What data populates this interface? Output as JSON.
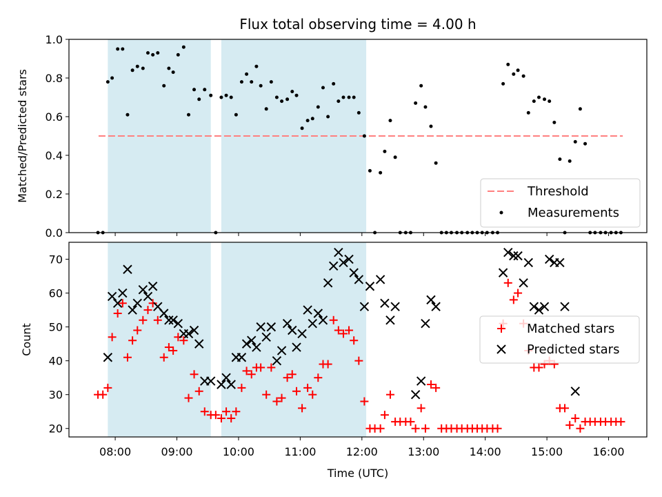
{
  "chart_data": [
    {
      "type": "scatter",
      "title": "Flux total observing time = 4.00 h",
      "xlabel": "",
      "ylabel": "Matched/Predicted stars",
      "xlim_hours": [
        7.25,
        16.62
      ],
      "ylim": [
        0,
        1.0
      ],
      "yticks": [
        0.0,
        0.2,
        0.4,
        0.6,
        0.8,
        1.0
      ],
      "ytick_labels": [
        "0.0",
        "0.2",
        "0.4",
        "0.6",
        "0.8",
        "1.0"
      ],
      "shaded_intervals_hours": [
        [
          7.88,
          9.55
        ],
        [
          9.72,
          12.07
        ]
      ],
      "threshold": {
        "name": "Threshold",
        "value": 0.5,
        "x_range_hours": [
          7.73,
          16.23
        ],
        "color": "#ff7f7f",
        "style": "dashed"
      },
      "legend": {
        "position": "lower right",
        "entries": [
          "Threshold",
          "Measurements"
        ]
      },
      "series": [
        {
          "name": "Measurements",
          "color": "#000000",
          "marker": "dot",
          "x_hours": [
            7.72,
            7.8,
            7.88,
            7.95,
            8.04,
            8.12,
            8.2,
            8.28,
            8.36,
            8.45,
            8.53,
            8.61,
            8.69,
            8.79,
            8.87,
            8.94,
            9.02,
            9.11,
            9.19,
            9.28,
            9.36,
            9.45,
            9.55,
            9.63,
            9.72,
            9.8,
            9.88,
            9.96,
            10.05,
            10.13,
            10.21,
            10.29,
            10.36,
            10.45,
            10.53,
            10.62,
            10.7,
            10.79,
            10.87,
            10.94,
            11.03,
            11.12,
            11.2,
            11.29,
            11.37,
            11.45,
            11.54,
            11.62,
            11.7,
            11.79,
            11.87,
            11.95,
            12.04,
            12.13,
            12.21,
            12.3,
            12.37,
            12.46,
            12.54,
            12.62,
            12.71,
            12.79,
            12.87,
            12.96,
            13.03,
            13.12,
            13.2,
            13.29,
            13.37,
            13.45,
            13.54,
            13.62,
            13.71,
            13.79,
            13.87,
            13.95,
            14.03,
            14.12,
            14.2,
            14.29,
            14.37,
            14.46,
            14.53,
            14.62,
            14.7,
            14.79,
            14.87,
            14.96,
            15.04,
            15.12,
            15.21,
            15.29,
            15.37,
            15.46,
            15.54,
            15.62,
            15.7,
            15.78,
            15.87,
            15.95,
            16.04,
            16.12,
            16.2
          ],
          "y": [
            0,
            0,
            0.78,
            0.8,
            0.95,
            0.95,
            0.61,
            0.84,
            0.86,
            0.85,
            0.93,
            0.92,
            0.93,
            0.76,
            0.85,
            0.83,
            0.92,
            0.96,
            0.61,
            0.74,
            0.69,
            0.74,
            0.71,
            0,
            0.7,
            0.71,
            0.7,
            0.61,
            0.78,
            0.82,
            0.78,
            0.86,
            0.76,
            0.64,
            0.78,
            0.7,
            0.68,
            0.69,
            0.73,
            0.71,
            0.54,
            0.58,
            0.59,
            0.65,
            0.75,
            0.6,
            0.77,
            0.68,
            0.7,
            0.7,
            0.7,
            0.62,
            0.5,
            0.32,
            0,
            0.31,
            0.42,
            0.58,
            0.39,
            0,
            0,
            0,
            0.67,
            0.76,
            0.65,
            0.55,
            0.36,
            0,
            0,
            0,
            0,
            0,
            0,
            0,
            0,
            0,
            0,
            0,
            0,
            0.77,
            0.87,
            0.82,
            0.84,
            0.81,
            0.62,
            0.68,
            0.7,
            0.69,
            0.68,
            0.57,
            0.38,
            0,
            0.37,
            0.47,
            0.64,
            0.46,
            0,
            0,
            0,
            0,
            0,
            0,
            0
          ]
        }
      ]
    },
    {
      "type": "scatter",
      "title": "",
      "xlabel": "Time (UTC)",
      "ylabel": "Count",
      "xlim_hours": [
        7.25,
        16.62
      ],
      "ylim": [
        17.5,
        75
      ],
      "yticks": [
        20,
        30,
        40,
        50,
        60,
        70
      ],
      "ytick_labels": [
        "20",
        "30",
        "40",
        "50",
        "60",
        "70"
      ],
      "xticks_hours": [
        8,
        9,
        10,
        11,
        12,
        13,
        14,
        15,
        16
      ],
      "xtick_labels": [
        "08:00",
        "09:00",
        "10:00",
        "11:00",
        "12:00",
        "13:00",
        "14:00",
        "15:00",
        "16:00"
      ],
      "shaded_intervals_hours": [
        [
          7.88,
          9.55
        ],
        [
          9.72,
          12.07
        ]
      ],
      "legend": {
        "position": "center right",
        "entries": [
          "Matched stars",
          "Predicted stars"
        ]
      },
      "series": [
        {
          "name": "Matched stars",
          "color": "#ff0000",
          "marker": "plus",
          "x_hours": [
            7.72,
            7.8,
            7.88,
            7.95,
            8.04,
            8.12,
            8.2,
            8.28,
            8.36,
            8.45,
            8.53,
            8.61,
            8.69,
            8.79,
            8.87,
            8.94,
            9.02,
            9.11,
            9.19,
            9.28,
            9.36,
            9.45,
            9.55,
            9.63,
            9.72,
            9.8,
            9.88,
            9.96,
            10.05,
            10.13,
            10.21,
            10.29,
            10.36,
            10.45,
            10.53,
            10.62,
            10.7,
            10.79,
            10.87,
            10.94,
            11.03,
            11.12,
            11.2,
            11.29,
            11.37,
            11.45,
            11.54,
            11.62,
            11.7,
            11.79,
            11.87,
            11.95,
            12.04,
            12.13,
            12.21,
            12.3,
            12.37,
            12.46,
            12.54,
            12.62,
            12.71,
            12.79,
            12.87,
            12.96,
            13.03,
            13.12,
            13.2,
            13.29,
            13.37,
            13.45,
            13.54,
            13.62,
            13.71,
            13.79,
            13.87,
            13.95,
            14.03,
            14.12,
            14.2,
            14.29,
            14.37,
            14.46,
            14.53,
            14.62,
            14.7,
            14.79,
            14.87,
            14.96,
            15.04,
            15.12,
            15.21,
            15.29,
            15.37,
            15.46,
            15.54,
            15.62,
            15.7,
            15.78,
            15.87,
            15.95,
            16.04,
            16.12,
            16.2
          ],
          "y": [
            30,
            30,
            32,
            47,
            54,
            57,
            41,
            46,
            49,
            52,
            55,
            57,
            52,
            41,
            44,
            43,
            47,
            46,
            29,
            36,
            31,
            25,
            24,
            24,
            23,
            25,
            23,
            25,
            32,
            37,
            36,
            38,
            38,
            30,
            38,
            28,
            29,
            35,
            36,
            31,
            26,
            32,
            30,
            35,
            39,
            39,
            52,
            49,
            48,
            49,
            46,
            40,
            28,
            20,
            20,
            20,
            24,
            30,
            22,
            22,
            22,
            22,
            20,
            26,
            20,
            33,
            32,
            20,
            20,
            20,
            20,
            20,
            20,
            20,
            20,
            20,
            20,
            20,
            20,
            51,
            63,
            58,
            60,
            51,
            43,
            38,
            38,
            39,
            40,
            39,
            26,
            26,
            21,
            23,
            20,
            22,
            22,
            22,
            22,
            22,
            22,
            22,
            22
          ]
        },
        {
          "name": "Predicted stars",
          "color": "#000000",
          "marker": "x",
          "x_hours": [
            7.88,
            7.95,
            8.04,
            8.12,
            8.2,
            8.28,
            8.36,
            8.45,
            8.53,
            8.61,
            8.69,
            8.79,
            8.87,
            8.94,
            9.02,
            9.11,
            9.19,
            9.28,
            9.36,
            9.45,
            9.55,
            9.72,
            9.8,
            9.88,
            9.96,
            10.05,
            10.13,
            10.21,
            10.29,
            10.36,
            10.45,
            10.53,
            10.62,
            10.7,
            10.79,
            10.87,
            10.94,
            11.03,
            11.12,
            11.2,
            11.29,
            11.37,
            11.45,
            11.54,
            11.62,
            11.7,
            11.79,
            11.87,
            11.95,
            12.04,
            12.13,
            12.3,
            12.37,
            12.46,
            12.54,
            12.87,
            12.96,
            13.03,
            13.12,
            13.2,
            14.29,
            14.37,
            14.46,
            14.53,
            14.62,
            14.7,
            14.79,
            14.87,
            14.96,
            15.04,
            15.12,
            15.21,
            15.29,
            15.46
          ],
          "y": [
            41,
            59,
            57,
            60,
            67,
            55,
            57,
            61,
            59,
            62,
            56,
            54,
            52,
            52,
            51,
            48,
            48,
            49,
            45,
            34,
            34,
            33,
            35,
            33,
            41,
            41,
            45,
            46,
            44,
            50,
            47,
            50,
            40,
            43,
            51,
            49,
            44,
            48,
            55,
            51,
            54,
            52,
            63,
            68,
            72,
            69,
            70,
            66,
            64,
            56,
            62,
            64,
            57,
            52,
            56,
            30,
            34,
            51,
            58,
            56,
            66,
            72,
            71,
            71,
            63,
            69,
            56,
            55,
            56,
            70,
            69,
            69,
            56,
            31
          ]
        }
      ]
    }
  ]
}
